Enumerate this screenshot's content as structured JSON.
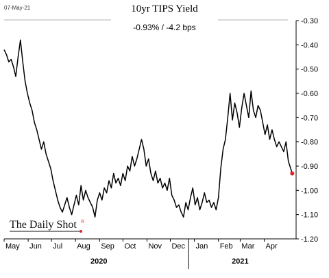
{
  "chart_data": {
    "type": "line",
    "title": "10yr TIPS Yield",
    "subtitle": "-0.93%  /  -4.2 bps",
    "date_stamp": "07-May-21",
    "source": "The Daily Shot",
    "source_mark": "®",
    "y_axis_side": "right",
    "y_axis_inverted": true,
    "ylim": [
      -0.3,
      -1.2
    ],
    "y_ticks": [
      -0.3,
      -0.4,
      -0.5,
      -0.6,
      -0.7,
      -0.8,
      -0.9,
      -1.0,
      -1.1,
      -1.2
    ],
    "y_tick_labels": [
      "-0.30",
      "-0.40",
      "-0.50",
      "-0.60",
      "-0.70",
      "-0.80",
      "-0.90",
      "-1.00",
      "-1.10",
      "-1.20"
    ],
    "xlim": [
      "2020-05-01",
      "2021-05-12"
    ],
    "x_months": [
      {
        "label": "May",
        "date": "2020-05-01"
      },
      {
        "label": "Jun",
        "date": "2020-06-01"
      },
      {
        "label": "Jul",
        "date": "2020-07-01"
      },
      {
        "label": "Aug",
        "date": "2020-08-01"
      },
      {
        "label": "Sep",
        "date": "2020-09-01"
      },
      {
        "label": "Oct",
        "date": "2020-10-01"
      },
      {
        "label": "Nov",
        "date": "2020-11-01"
      },
      {
        "label": "Dec",
        "date": "2020-12-01"
      },
      {
        "label": "Jan",
        "date": "2021-01-01"
      },
      {
        "label": "Feb",
        "date": "2021-02-01"
      },
      {
        "label": "Mar",
        "date": "2021-03-01"
      },
      {
        "label": "Apr",
        "date": "2021-04-01"
      }
    ],
    "years": [
      {
        "label": "2020",
        "center": "2020-08-31"
      },
      {
        "label": "2021",
        "center": "2021-03-01"
      }
    ],
    "grid": false,
    "last_point_color": "#e0262b",
    "series": [
      {
        "color": "#000000",
        "x": [
          "2020-05-01",
          "2020-05-04",
          "2020-05-07",
          "2020-05-10",
          "2020-05-13",
          "2020-05-16",
          "2020-05-19",
          "2020-05-22",
          "2020-05-25",
          "2020-05-28",
          "2020-05-31",
          "2020-06-03",
          "2020-06-06",
          "2020-06-09",
          "2020-06-12",
          "2020-06-15",
          "2020-06-18",
          "2020-06-21",
          "2020-06-24",
          "2020-06-27",
          "2020-06-30",
          "2020-07-03",
          "2020-07-06",
          "2020-07-09",
          "2020-07-12",
          "2020-07-15",
          "2020-07-18",
          "2020-07-21",
          "2020-07-24",
          "2020-07-27",
          "2020-07-30",
          "2020-08-02",
          "2020-08-05",
          "2020-08-08",
          "2020-08-11",
          "2020-08-14",
          "2020-08-17",
          "2020-08-20",
          "2020-08-23",
          "2020-08-26",
          "2020-08-29",
          "2020-09-01",
          "2020-09-04",
          "2020-09-07",
          "2020-09-10",
          "2020-09-13",
          "2020-09-16",
          "2020-09-19",
          "2020-09-22",
          "2020-09-25",
          "2020-09-28",
          "2020-10-01",
          "2020-10-04",
          "2020-10-07",
          "2020-10-10",
          "2020-10-13",
          "2020-10-16",
          "2020-10-19",
          "2020-10-22",
          "2020-10-25",
          "2020-10-28",
          "2020-10-31",
          "2020-11-03",
          "2020-11-06",
          "2020-11-09",
          "2020-11-12",
          "2020-11-15",
          "2020-11-18",
          "2020-11-21",
          "2020-11-24",
          "2020-11-27",
          "2020-11-30",
          "2020-12-03",
          "2020-12-06",
          "2020-12-09",
          "2020-12-12",
          "2020-12-15",
          "2020-12-18",
          "2020-12-21",
          "2020-12-24",
          "2020-12-27",
          "2020-12-30",
          "2021-01-02",
          "2021-01-05",
          "2021-01-08",
          "2021-01-11",
          "2021-01-14",
          "2021-01-17",
          "2021-01-20",
          "2021-01-23",
          "2021-01-26",
          "2021-01-29",
          "2021-02-01",
          "2021-02-04",
          "2021-02-07",
          "2021-02-10",
          "2021-02-13",
          "2021-02-16",
          "2021-02-19",
          "2021-02-22",
          "2021-02-25",
          "2021-02-28",
          "2021-03-03",
          "2021-03-06",
          "2021-03-09",
          "2021-03-12",
          "2021-03-15",
          "2021-03-18",
          "2021-03-21",
          "2021-03-24",
          "2021-03-27",
          "2021-03-30",
          "2021-04-02",
          "2021-04-05",
          "2021-04-08",
          "2021-04-11",
          "2021-04-14",
          "2021-04-17",
          "2021-04-20",
          "2021-04-23",
          "2021-04-26",
          "2021-04-29",
          "2021-05-02",
          "2021-05-05",
          "2021-05-07"
        ],
        "values": [
          -0.42,
          -0.44,
          -0.47,
          -0.46,
          -0.49,
          -0.53,
          -0.45,
          -0.38,
          -0.47,
          -0.55,
          -0.6,
          -0.64,
          -0.67,
          -0.72,
          -0.75,
          -0.79,
          -0.83,
          -0.8,
          -0.85,
          -0.88,
          -0.91,
          -0.96,
          -1.0,
          -1.04,
          -1.07,
          -1.09,
          -1.06,
          -1.03,
          -1.07,
          -1.1,
          -1.06,
          -1.02,
          -1.06,
          -0.98,
          -1.04,
          -1.0,
          -1.03,
          -1.05,
          -1.07,
          -1.11,
          -1.04,
          -1.01,
          -1.04,
          -0.99,
          -1.01,
          -0.96,
          -0.99,
          -0.93,
          -0.97,
          -0.95,
          -0.98,
          -0.93,
          -0.96,
          -0.9,
          -0.92,
          -0.86,
          -0.9,
          -0.87,
          -0.83,
          -0.79,
          -0.83,
          -0.9,
          -0.87,
          -0.93,
          -0.96,
          -0.92,
          -0.97,
          -0.95,
          -0.99,
          -0.97,
          -1.0,
          -0.95,
          -1.02,
          -1.04,
          -1.07,
          -1.06,
          -1.09,
          -1.11,
          -1.05,
          -1.08,
          -1.03,
          -0.99,
          -1.06,
          -1.03,
          -1.08,
          -1.05,
          -1.01,
          -1.05,
          -1.04,
          -1.07,
          -1.05,
          -1.08,
          -1.03,
          -0.91,
          -0.83,
          -0.79,
          -0.7,
          -0.6,
          -0.71,
          -0.64,
          -0.68,
          -0.74,
          -0.66,
          -0.6,
          -0.65,
          -0.7,
          -0.59,
          -0.67,
          -0.7,
          -0.65,
          -0.67,
          -0.72,
          -0.77,
          -0.73,
          -0.79,
          -0.75,
          -0.79,
          -0.82,
          -0.8,
          -0.82,
          -0.84,
          -0.8,
          -0.88,
          -0.91,
          -0.93
        ]
      }
    ]
  }
}
